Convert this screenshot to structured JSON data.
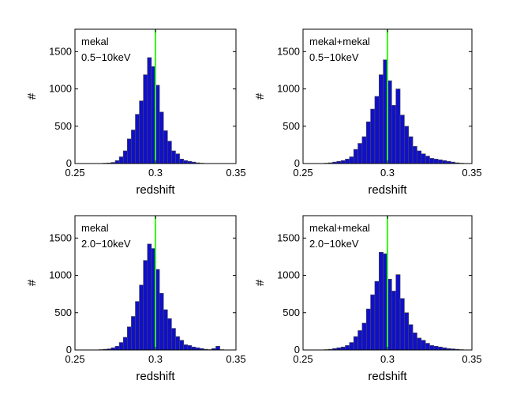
{
  "chart_data": [
    {
      "type": "bar",
      "annotation": [
        "mekal",
        "0.5−10keV"
      ],
      "xlabel": "redshift",
      "ylabel": "#",
      "xlim": [
        0.25,
        0.35
      ],
      "ylim": [
        0,
        1800
      ],
      "xticks": [
        "0.25",
        "0.3",
        "0.35"
      ],
      "yticks": [
        "0",
        "500",
        "1000",
        "1500"
      ],
      "reference_line": {
        "x": 0.3,
        "color": "#33ff00"
      },
      "bar_color": "#1010c8",
      "bin_width": 0.0025,
      "bin_start": 0.25,
      "values": [
        0,
        0,
        0,
        0,
        0,
        0,
        0,
        5,
        8,
        15,
        40,
        90,
        170,
        330,
        450,
        660,
        840,
        1190,
        1420,
        1300,
        1050,
        690,
        440,
        300,
        170,
        130,
        60,
        40,
        30,
        20,
        10,
        5,
        2,
        0,
        0,
        0,
        0,
        0,
        0,
        0
      ]
    },
    {
      "type": "bar",
      "annotation": [
        "mekal+mekal",
        "0.5−10keV"
      ],
      "xlabel": "redshift",
      "ylabel": "#",
      "xlim": [
        0.25,
        0.35
      ],
      "ylim": [
        0,
        1800
      ],
      "xticks": [
        "0.25",
        "0.3",
        "0.35"
      ],
      "yticks": [
        "0",
        "500",
        "1000",
        "1500"
      ],
      "reference_line": {
        "x": 0.3,
        "color": "#33ff00"
      },
      "bar_color": "#1010c8",
      "bin_width": 0.0025,
      "bin_start": 0.25,
      "values": [
        0,
        0,
        0,
        0,
        0,
        5,
        10,
        20,
        30,
        40,
        60,
        90,
        190,
        270,
        360,
        560,
        730,
        900,
        1190,
        1390,
        1110,
        780,
        1000,
        650,
        500,
        360,
        230,
        170,
        130,
        100,
        70,
        60,
        50,
        40,
        30,
        20,
        10,
        5,
        0,
        0
      ]
    },
    {
      "type": "bar",
      "annotation": [
        "mekal",
        "2.0−10keV"
      ],
      "xlabel": "redshift",
      "ylabel": "#",
      "xlim": [
        0.25,
        0.35
      ],
      "ylim": [
        0,
        1800
      ],
      "xticks": [
        "0.25",
        "0.3",
        "0.35"
      ],
      "yticks": [
        "0",
        "500",
        "1000",
        "1500"
      ],
      "reference_line": {
        "x": 0.3,
        "color": "#33ff00"
      },
      "bar_color": "#1010c8",
      "bin_width": 0.0025,
      "bin_start": 0.25,
      "values": [
        0,
        0,
        0,
        0,
        0,
        0,
        5,
        10,
        15,
        30,
        50,
        100,
        170,
        310,
        450,
        650,
        870,
        1200,
        1420,
        1360,
        1080,
        760,
        540,
        420,
        290,
        180,
        130,
        70,
        60,
        40,
        30,
        20,
        10,
        5,
        20,
        50,
        5,
        0,
        0,
        0
      ]
    },
    {
      "type": "bar",
      "annotation": [
        "mekal+mekal",
        "2.0−10keV"
      ],
      "xlabel": "redshift",
      "ylabel": "#",
      "xlim": [
        0.25,
        0.35
      ],
      "ylim": [
        0,
        1800
      ],
      "xticks": [
        "0.25",
        "0.3",
        "0.35"
      ],
      "yticks": [
        "0",
        "500",
        "1000",
        "1500"
      ],
      "reference_line": {
        "x": 0.3,
        "color": "#33ff00"
      },
      "bar_color": "#1010c8",
      "bin_width": 0.0025,
      "bin_start": 0.25,
      "values": [
        0,
        0,
        0,
        0,
        0,
        5,
        10,
        20,
        30,
        40,
        60,
        100,
        180,
        260,
        360,
        550,
        740,
        920,
        1310,
        1290,
        950,
        790,
        1010,
        690,
        500,
        340,
        230,
        160,
        130,
        90,
        60,
        50,
        40,
        30,
        20,
        15,
        10,
        5,
        0,
        0
      ]
    }
  ]
}
